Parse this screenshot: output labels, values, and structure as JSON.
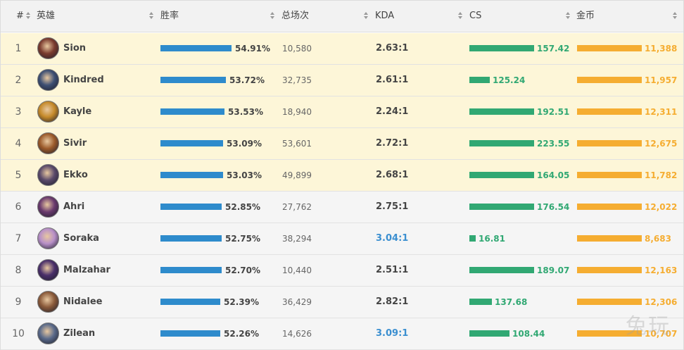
{
  "header": {
    "rank": "#",
    "hero": "英雄",
    "winrate": "胜率",
    "games": "总场次",
    "kda": "KDA",
    "cs": "CS",
    "gold": "金币"
  },
  "rows": [
    {
      "rank": "1",
      "name": "Sion",
      "winrate": "54.91%",
      "games": "10,580",
      "kda": "2.63:1",
      "cs": "157.42",
      "gold": "11,388",
      "wr_fill": 1.0,
      "cs_fill": 0.8,
      "gold_fill": 0.8,
      "kda_hi": false,
      "hl": true,
      "avatar_color": "#7a3b2e"
    },
    {
      "rank": "2",
      "name": "Kindred",
      "winrate": "53.72%",
      "games": "32,735",
      "kda": "2.61:1",
      "cs": "125.24",
      "gold": "11,957",
      "wr_fill": 0.92,
      "cs_fill": 0.32,
      "gold_fill": 0.8,
      "kda_hi": false,
      "hl": true,
      "avatar_color": "#3d4f73"
    },
    {
      "rank": "3",
      "name": "Kayle",
      "winrate": "53.53%",
      "games": "18,940",
      "kda": "2.24:1",
      "cs": "192.51",
      "gold": "12,311",
      "wr_fill": 0.9,
      "cs_fill": 0.8,
      "gold_fill": 0.8,
      "kda_hi": false,
      "hl": true,
      "avatar_color": "#c58a2a"
    },
    {
      "rank": "4",
      "name": "Sivir",
      "winrate": "53.09%",
      "games": "53,601",
      "kda": "2.72:1",
      "cs": "223.55",
      "gold": "12,675",
      "wr_fill": 0.88,
      "cs_fill": 0.8,
      "gold_fill": 0.8,
      "kda_hi": false,
      "hl": true,
      "avatar_color": "#9b5a2a"
    },
    {
      "rank": "5",
      "name": "Ekko",
      "winrate": "53.03%",
      "games": "49,899",
      "kda": "2.68:1",
      "cs": "164.05",
      "gold": "11,782",
      "wr_fill": 0.88,
      "cs_fill": 0.8,
      "gold_fill": 0.8,
      "kda_hi": false,
      "hl": true,
      "avatar_color": "#5a4a6a"
    },
    {
      "rank": "6",
      "name": "Ahri",
      "winrate": "52.85%",
      "games": "27,762",
      "kda": "2.75:1",
      "cs": "176.54",
      "gold": "12,022",
      "wr_fill": 0.86,
      "cs_fill": 0.8,
      "gold_fill": 0.8,
      "kda_hi": false,
      "hl": false,
      "avatar_color": "#6a3a6e"
    },
    {
      "rank": "7",
      "name": "Soraka",
      "winrate": "52.75%",
      "games": "38,294",
      "kda": "3.04:1",
      "cs": "16.81",
      "gold": "8,683",
      "wr_fill": 0.86,
      "cs_fill": 0.1,
      "gold_fill": 0.8,
      "kda_hi": true,
      "hl": false,
      "avatar_color": "#b890c8"
    },
    {
      "rank": "8",
      "name": "Malzahar",
      "winrate": "52.70%",
      "games": "10,440",
      "kda": "2.51:1",
      "cs": "189.07",
      "gold": "12,163",
      "wr_fill": 0.86,
      "cs_fill": 0.8,
      "gold_fill": 0.8,
      "kda_hi": false,
      "hl": false,
      "avatar_color": "#4a2f6a"
    },
    {
      "rank": "9",
      "name": "Nidalee",
      "winrate": "52.39%",
      "games": "36,429",
      "kda": "2.82:1",
      "cs": "137.68",
      "gold": "12,306",
      "wr_fill": 0.84,
      "cs_fill": 0.35,
      "gold_fill": 0.8,
      "kda_hi": false,
      "hl": false,
      "avatar_color": "#8a5a3a"
    },
    {
      "rank": "10",
      "name": "Zilean",
      "winrate": "52.26%",
      "games": "14,626",
      "kda": "3.09:1",
      "cs": "108.44",
      "gold": "10,707",
      "wr_fill": 0.84,
      "cs_fill": 0.62,
      "gold_fill": 0.8,
      "kda_hi": true,
      "hl": false,
      "avatar_color": "#5a6a8a"
    }
  ],
  "watermark": "兔玩"
}
